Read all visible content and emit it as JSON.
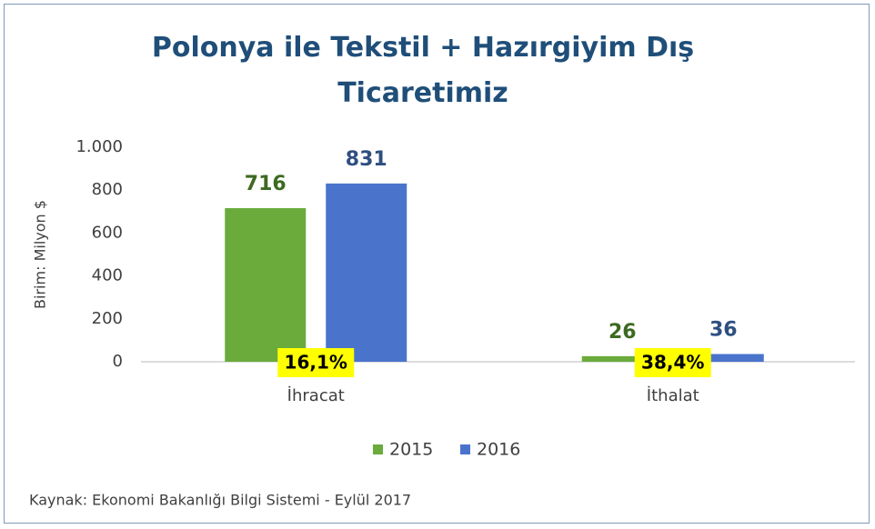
{
  "chart_data": {
    "type": "bar",
    "title": "Polonya ile Tekstil + Hazırgiyim Dış Ticaretimiz",
    "y_label": "Birim: Milyon $",
    "categories": [
      "İhracat",
      "İthalat"
    ],
    "series": [
      {
        "name": "2015",
        "color": "#6aab3c",
        "label_color": "#3d6a22",
        "values": [
          716,
          26
        ]
      },
      {
        "name": "2016",
        "color": "#4a74cc",
        "label_color": "#2e4f80",
        "values": [
          831,
          36
        ]
      }
    ],
    "annotations": [
      "16,1%",
      "38,4%"
    ],
    "ylim": [
      0,
      1000
    ],
    "yticks": [
      0,
      200,
      400,
      600,
      800,
      {
        "value": 1000,
        "label": "1.000"
      }
    ],
    "grid": false,
    "legend": "bottom",
    "source": "Kaynak: Ekonomi Bakanlığı Bilgi Sistemi - Eylül 2017"
  }
}
